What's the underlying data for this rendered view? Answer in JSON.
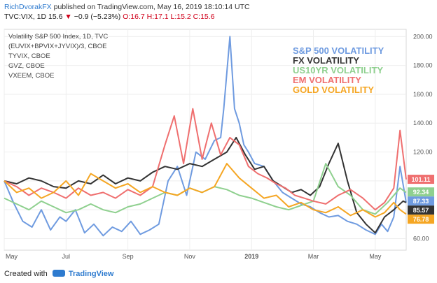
{
  "header": {
    "author": "RichDvorakFX",
    "published_text": "published on TradingView.com, May 16, 2019 18:10:14 UTC"
  },
  "symbol_line": {
    "symbol": "TVC:VIX, 1D",
    "last": "15.6",
    "change": "−0.9 (−5.23%)",
    "ohlc": "O:16.7 H:17.1 L:15.2 C:15.6"
  },
  "footer": {
    "created_with": "Created with",
    "brand": "TradingView"
  },
  "chart_data": {
    "type": "line",
    "legend_top_left": [
      "Volatility S&P 500 Index, 1D, TVC",
      "(EUVIX+BPVIX+JYVIX)/3, CBOE",
      "TYVIX, CBOE",
      "GVZ, CBOE",
      "VXEEM, CBOE"
    ],
    "legend_right": [
      {
        "name": "S&P 500 VOLATILITY",
        "color": "#6f9be0"
      },
      {
        "name": "FX VOLATILITY",
        "color": "#333333"
      },
      {
        "name": "US10YR VOLATILITY",
        "color": "#8fd08f"
      },
      {
        "name": "EM VOLATILITY",
        "color": "#ef6f6f"
      },
      {
        "name": "GOLD VOLATILITY",
        "color": "#f5a623"
      }
    ],
    "x_labels": [
      "May",
      "Jul",
      "Sep",
      "Nov",
      "2019",
      "Mar",
      "May"
    ],
    "x_label_months": [
      0,
      2,
      4,
      6,
      8,
      10,
      12
    ],
    "y_ticks": [
      "60.00",
      "80.00",
      "100.00",
      "120.00",
      "140.00",
      "160.00",
      "180.00",
      "200.00"
    ],
    "y_tick_values": [
      60,
      80,
      100,
      120,
      140,
      160,
      180,
      200
    ],
    "ylim": [
      52,
      205
    ],
    "xlim": [
      0,
      13
    ],
    "grid": true,
    "last_value_labels": [
      {
        "value": 101.11,
        "text": "101.11",
        "color": "#ef6f6f"
      },
      {
        "value": 92.34,
        "text": "92.34",
        "color": "#8fd08f"
      },
      {
        "value": 87.33,
        "text": "87.33",
        "color": "#6f9be0"
      },
      {
        "value": 85.57,
        "text": "85.57",
        "color": "#333333"
      },
      {
        "value": 76.78,
        "text": "76.78",
        "color": "#f5a623"
      }
    ],
    "series": [
      {
        "name": "S&P 500 VOLATILITY",
        "color": "#6f9be0",
        "x": [
          0,
          0.3,
          0.6,
          0.9,
          1.2,
          1.5,
          1.8,
          2.0,
          2.3,
          2.6,
          2.9,
          3.2,
          3.5,
          3.8,
          4.1,
          4.4,
          4.7,
          5.0,
          5.3,
          5.6,
          5.9,
          6.2,
          6.5,
          6.8,
          7.0,
          7.1,
          7.2,
          7.3,
          7.45,
          7.6,
          7.75,
          7.9,
          8.1,
          8.4,
          8.7,
          9.0,
          9.3,
          9.6,
          9.9,
          10.2,
          10.5,
          10.8,
          11.1,
          11.4,
          11.7,
          12.0,
          12.2,
          12.4,
          12.6,
          12.8,
          13.0
        ],
        "y": [
          100,
          85,
          72,
          68,
          80,
          66,
          75,
          72,
          80,
          64,
          70,
          62,
          68,
          65,
          72,
          63,
          66,
          70,
          100,
          110,
          90,
          120,
          115,
          128,
          130,
          150,
          175,
          200,
          150,
          140,
          125,
          120,
          112,
          110,
          100,
          92,
          88,
          84,
          82,
          78,
          75,
          76,
          72,
          70,
          66,
          63,
          70,
          65,
          75,
          110,
          85
        ]
      },
      {
        "name": "FX VOLATILITY",
        "color": "#333333",
        "x": [
          0,
          0.4,
          0.8,
          1.2,
          1.6,
          2.0,
          2.4,
          2.8,
          3.2,
          3.6,
          4.0,
          4.4,
          4.8,
          5.2,
          5.6,
          6.0,
          6.4,
          6.8,
          7.2,
          7.5,
          7.8,
          8.1,
          8.4,
          8.7,
          9.0,
          9.3,
          9.6,
          9.9,
          10.2,
          10.5,
          10.8,
          11.1,
          11.4,
          11.7,
          12.0,
          12.3,
          12.6,
          12.9,
          13.0
        ],
        "y": [
          100,
          98,
          102,
          100,
          96,
          95,
          100,
          98,
          104,
          98,
          102,
          100,
          106,
          110,
          108,
          112,
          110,
          115,
          120,
          130,
          118,
          108,
          110,
          100,
          96,
          92,
          94,
          90,
          96,
          112,
          126,
          100,
          78,
          70,
          64,
          75,
          80,
          86,
          85
        ]
      },
      {
        "name": "US10YR VOLATILITY",
        "color": "#8fd08f",
        "x": [
          0,
          0.4,
          0.8,
          1.2,
          1.6,
          2.0,
          2.4,
          2.8,
          3.2,
          3.6,
          4.0,
          4.4,
          4.8,
          5.2,
          5.6,
          6.0,
          6.4,
          6.8,
          7.2,
          7.6,
          8.0,
          8.4,
          8.8,
          9.2,
          9.6,
          10.0,
          10.4,
          10.8,
          11.2,
          11.6,
          12.0,
          12.4,
          12.8,
          13.0
        ],
        "y": [
          88,
          84,
          80,
          86,
          82,
          78,
          80,
          84,
          80,
          78,
          82,
          84,
          88,
          92,
          90,
          95,
          92,
          96,
          94,
          90,
          88,
          85,
          82,
          80,
          83,
          86,
          112,
          96,
          90,
          80,
          77,
          85,
          95,
          92
        ]
      },
      {
        "name": "EM VOLATILITY",
        "color": "#ef6f6f",
        "x": [
          0,
          0.4,
          0.8,
          1.2,
          1.6,
          2.0,
          2.4,
          2.8,
          3.2,
          3.6,
          4.0,
          4.4,
          4.8,
          5.2,
          5.5,
          5.8,
          6.1,
          6.4,
          6.7,
          7.0,
          7.3,
          7.6,
          7.9,
          8.2,
          8.5,
          8.8,
          9.1,
          9.4,
          9.7,
          10.0,
          10.4,
          10.8,
          11.2,
          11.6,
          12.0,
          12.3,
          12.6,
          12.8,
          13.0
        ],
        "y": [
          100,
          96,
          90,
          95,
          92,
          88,
          95,
          90,
          92,
          88,
          94,
          90,
          96,
          125,
          145,
          112,
          150,
          115,
          140,
          118,
          130,
          125,
          110,
          105,
          102,
          98,
          95,
          90,
          88,
          86,
          84,
          90,
          94,
          88,
          80,
          85,
          95,
          135,
          101
        ]
      },
      {
        "name": "GOLD VOLATILITY",
        "color": "#f5a623",
        "x": [
          0,
          0.4,
          0.8,
          1.2,
          1.6,
          2.0,
          2.4,
          2.8,
          3.2,
          3.6,
          4.0,
          4.4,
          4.8,
          5.2,
          5.6,
          6.0,
          6.4,
          6.8,
          7.2,
          7.6,
          8.0,
          8.4,
          8.8,
          9.2,
          9.6,
          10.0,
          10.4,
          10.8,
          11.2,
          11.6,
          12.0,
          12.3,
          12.6,
          12.8,
          13.0
        ],
        "y": [
          100,
          92,
          95,
          88,
          92,
          100,
          90,
          105,
          100,
          95,
          98,
          92,
          96,
          92,
          90,
          95,
          92,
          96,
          112,
          102,
          95,
          88,
          90,
          82,
          85,
          80,
          78,
          82,
          76,
          80,
          75,
          78,
          85,
          80,
          77
        ]
      }
    ]
  }
}
